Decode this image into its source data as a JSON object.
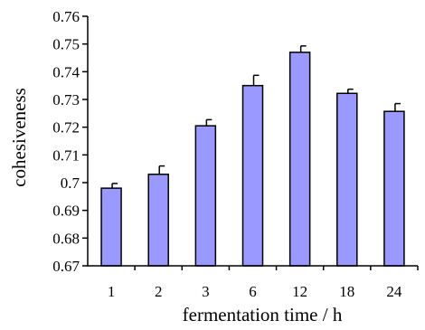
{
  "chart_data": {
    "type": "bar",
    "categories": [
      "1",
      "2",
      "3",
      "6",
      "12",
      "18",
      "24"
    ],
    "values": [
      0.698,
      0.703,
      0.7205,
      0.735,
      0.747,
      0.7322,
      0.7257
    ],
    "errors": [
      0.0017,
      0.003,
      0.0022,
      0.0037,
      0.0023,
      0.0015,
      0.0028
    ],
    "yticks": [
      "0.67",
      "0.68",
      "0.69",
      "0.7",
      "0.71",
      "0.72",
      "0.73",
      "0.74",
      "0.75",
      "0.76"
    ],
    "ylim": [
      0.67,
      0.76
    ],
    "xlabel": "fermentation time / h",
    "ylabel": "cohesiveness",
    "grid": false,
    "bar_color": "#9999ff"
  }
}
